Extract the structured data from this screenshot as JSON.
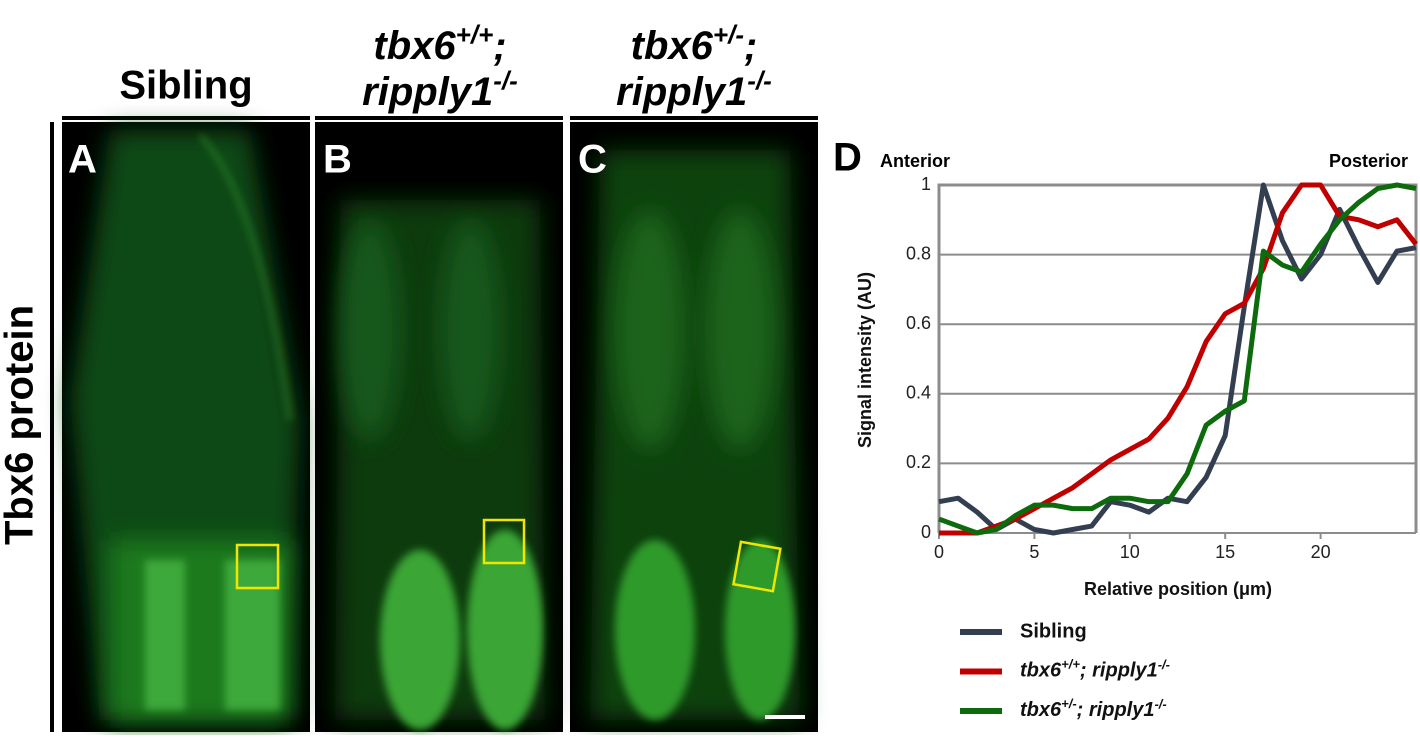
{
  "figure": {
    "row_label": "Tbx6 protein",
    "columns": [
      {
        "panel": "A",
        "header": [
          "Sibling"
        ]
      },
      {
        "panel": "B",
        "header": [
          "tbx6+/+;",
          "ripply1-/-"
        ]
      },
      {
        "panel": "C",
        "header": [
          "tbx6+/-;",
          "ripply1-/-"
        ]
      }
    ]
  },
  "chart_data": {
    "type": "line",
    "panel": "D",
    "annotations": [
      "Anterior",
      "Posterior"
    ],
    "x_label": "Relative position (μm)",
    "y_label": "Signal intensity (AU)",
    "x": [
      0,
      1,
      2,
      3,
      4,
      5,
      6,
      7,
      8,
      9,
      10,
      11,
      12,
      13,
      14,
      15,
      16,
      17,
      18,
      19,
      20,
      21,
      22,
      23,
      24,
      25
    ],
    "series": [
      {
        "name": "Sibling",
        "color": "#333f50",
        "values": [
          0.09,
          0.1,
          0.06,
          0.01,
          0.04,
          0.01,
          0.0,
          0.01,
          0.02,
          0.09,
          0.08,
          0.06,
          0.1,
          0.09,
          0.16,
          0.28,
          0.65,
          1.0,
          0.84,
          0.73,
          0.8,
          0.93,
          0.82,
          0.72,
          0.81,
          0.82
        ]
      },
      {
        "name": "tbx6+/+; ripply1-/-",
        "color": "#c00000",
        "values": [
          0.0,
          0.0,
          0.0,
          0.02,
          0.04,
          0.07,
          0.1,
          0.13,
          0.17,
          0.21,
          0.24,
          0.27,
          0.33,
          0.42,
          0.55,
          0.63,
          0.66,
          0.76,
          0.92,
          1.0,
          1.0,
          0.91,
          0.9,
          0.88,
          0.9,
          0.83
        ]
      },
      {
        "name": "tbx6+/-; ripply1-/-",
        "color": "#0d6b0d",
        "values": [
          0.04,
          0.02,
          0.0,
          0.01,
          0.05,
          0.08,
          0.08,
          0.07,
          0.07,
          0.1,
          0.1,
          0.09,
          0.09,
          0.17,
          0.31,
          0.35,
          0.38,
          0.81,
          0.77,
          0.75,
          0.83,
          0.9,
          0.95,
          0.99,
          1.0,
          0.99
        ]
      }
    ],
    "xlim": [
      0,
      25
    ],
    "xticks": [
      0,
      5,
      10,
      15,
      20
    ],
    "ylim": [
      0,
      1
    ],
    "yticks": [
      0,
      0.2,
      0.4,
      0.6,
      0.8,
      1
    ],
    "grid": true
  }
}
